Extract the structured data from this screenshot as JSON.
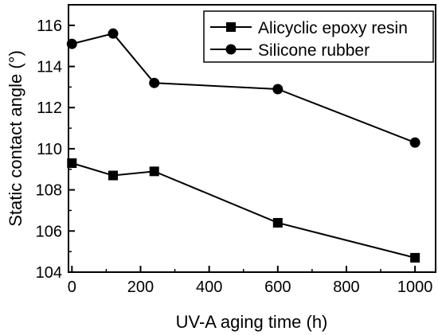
{
  "chart_data": {
    "type": "line",
    "xlabel": "UV-A aging time (h)",
    "ylabel": "Static contact angle (°)",
    "xlim": [
      -10,
      1060
    ],
    "ylim": [
      104,
      117
    ],
    "x_ticks": [
      0,
      200,
      400,
      600,
      800,
      1000
    ],
    "y_ticks": [
      104,
      106,
      108,
      110,
      112,
      114,
      116
    ],
    "grid": false,
    "legend_position": "top-right",
    "series": [
      {
        "name": "Alicyclic epoxy resin",
        "marker": "square",
        "color": "#000000",
        "x": [
          0,
          120,
          240,
          600,
          1000
        ],
        "y": [
          109.3,
          108.7,
          108.9,
          106.4,
          104.7
        ]
      },
      {
        "name": "Silicone rubber",
        "marker": "circle",
        "color": "#000000",
        "x": [
          0,
          120,
          240,
          600,
          1000
        ],
        "y": [
          115.1,
          115.6,
          113.2,
          112.9,
          110.3
        ]
      }
    ]
  }
}
